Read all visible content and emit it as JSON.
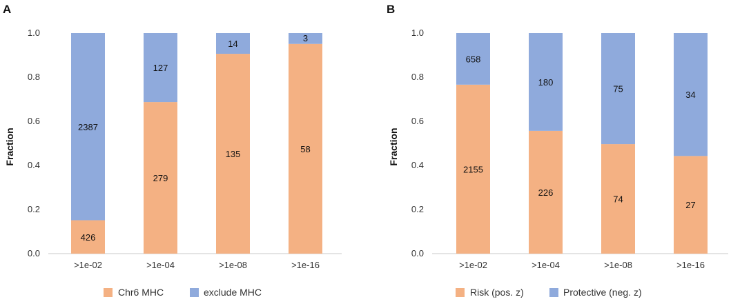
{
  "colors": {
    "series1": "#f4b183",
    "series2": "#8faadc",
    "axis": "#c8c8c8"
  },
  "chart_data": [
    {
      "type": "bar",
      "stacked": true,
      "panel_label": "A",
      "categories": [
        ">1e-02",
        ">1e-04",
        ">1e-08",
        ">1e-16"
      ],
      "series": [
        {
          "name": "Chr6 MHC",
          "counts": [
            426,
            279,
            135,
            58
          ],
          "labels": [
            "426",
            "279",
            "135",
            "58"
          ]
        },
        {
          "name": "exclude MHC",
          "counts": [
            2387,
            127,
            14,
            3
          ],
          "labels": [
            "2387",
            "127",
            "14",
            "3"
          ]
        }
      ],
      "ylabel": "Fraction",
      "ylim": [
        0,
        1.0
      ],
      "yticks": [
        "0.0",
        "0.2",
        "0.4",
        "0.6",
        "0.8",
        "1.0"
      ],
      "legend": "bottom"
    },
    {
      "type": "bar",
      "stacked": true,
      "panel_label": "B",
      "categories": [
        ">1e-02",
        ">1e-04",
        ">1e-08",
        ">1e-16"
      ],
      "series": [
        {
          "name": "Risk (pos. z)",
          "counts": [
            2155,
            226,
            74,
            27
          ],
          "labels": [
            "2155",
            "226",
            "74",
            "27"
          ]
        },
        {
          "name": "Protective (neg. z)",
          "counts": [
            658,
            180,
            75,
            34
          ],
          "labels": [
            "658",
            "180",
            "75",
            "34"
          ]
        }
      ],
      "ylabel": "Fraction",
      "ylim": [
        0,
        1.0
      ],
      "yticks": [
        "0.0",
        "0.2",
        "0.4",
        "0.6",
        "0.8",
        "1.0"
      ],
      "legend": "bottom"
    }
  ]
}
